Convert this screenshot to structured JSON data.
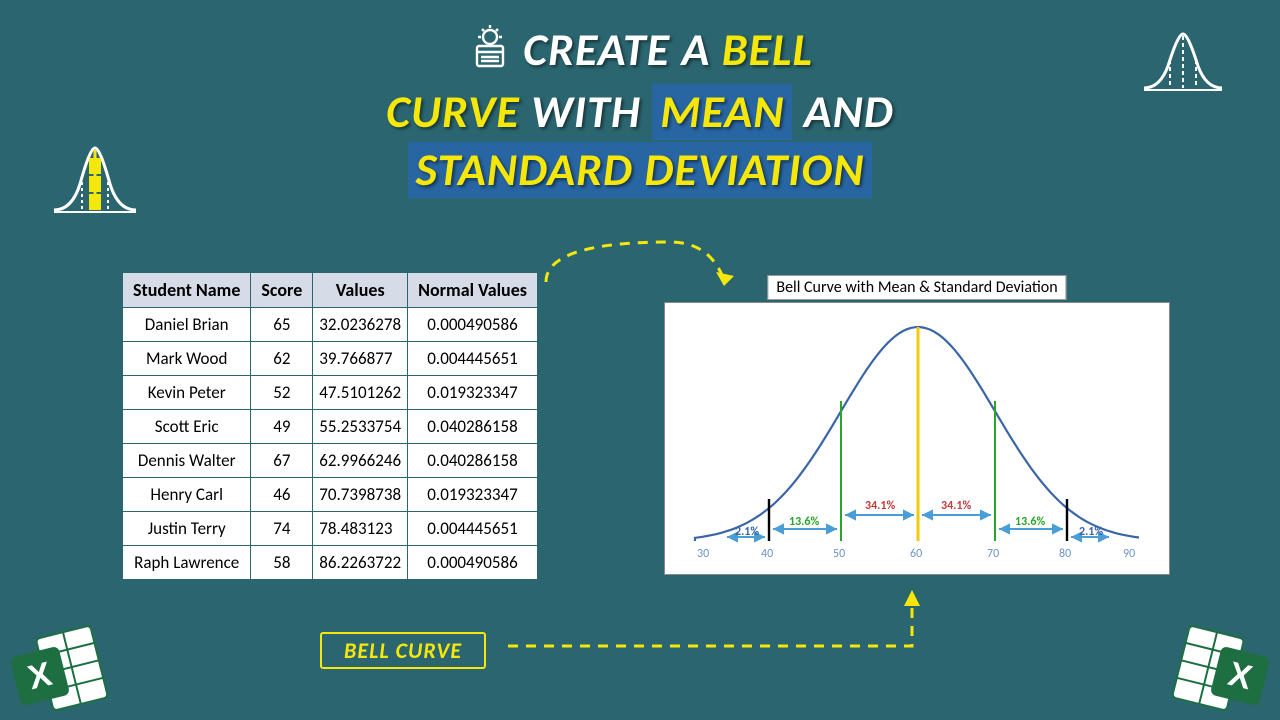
{
  "title": {
    "line1_a": "CREATE A ",
    "line1_b": "BELL",
    "line2_a": "CURVE",
    "line2_b": " WITH ",
    "line2_c": "MEAN",
    "line2_d": " AND",
    "line3": "STANDARD DEVIATION"
  },
  "table": {
    "headers": [
      "Student Name",
      "Score",
      "Values",
      "Normal Values"
    ],
    "rows": [
      [
        "Daniel Brian",
        "65",
        "32.0236278",
        "0.000490586"
      ],
      [
        "Mark Wood",
        "62",
        "39.766877",
        "0.004445651"
      ],
      [
        "Kevin Peter",
        "52",
        "47.5101262",
        "0.019323347"
      ],
      [
        "Scott Eric",
        "49",
        "55.2533754",
        "0.040286158"
      ],
      [
        "Dennis Walter",
        "67",
        "62.9966246",
        "0.040286158"
      ],
      [
        "Henry Carl",
        "46",
        "70.7398738",
        "0.019323347"
      ],
      [
        "Justin Terry",
        "74",
        "78.483123",
        "0.004445651"
      ],
      [
        "Raph Lawrence",
        "58",
        "86.2263722",
        "0.000490586"
      ]
    ]
  },
  "chart": {
    "title": "Bell Curve with Mean & Standard Deviation",
    "curve_color": "#3a66a8",
    "mean_line_color": "#f5c80a",
    "sd1_line_color": "#2aa52a",
    "sd2_line_color": "#000000",
    "inner_pct": "34.1%",
    "inner_pct_color": "#c43a3a",
    "mid_pct": "13.6%",
    "mid_pct_color": "#2aa52a",
    "tail_pct": "2.1%",
    "tail_pct_color": "#3a66a8",
    "arrow_color": "#4a9ed8",
    "xticks": [
      "30",
      "40",
      "50",
      "60",
      "70",
      "80",
      "90"
    ]
  },
  "label": {
    "bell_curve": "BELL CURVE"
  },
  "colors": {
    "bg": "#2b6670",
    "highlight": "#f5e70a",
    "highlight_box_bg": "#2866a3",
    "table_header_bg": "#d6dbe8",
    "excel_green": "#1d6f42",
    "dash_arrow": "#f5e70a"
  }
}
